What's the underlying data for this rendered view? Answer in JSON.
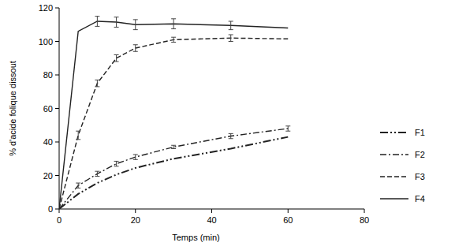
{
  "chart_data": {
    "type": "line",
    "x_label": "Temps (min)",
    "y_label": "% d'acide folique dissout",
    "x": [
      0,
      5,
      10,
      15,
      20,
      30,
      45,
      60
    ],
    "xlim": [
      0,
      80
    ],
    "xticks": [
      0,
      20,
      40,
      60,
      80
    ],
    "ylim": [
      0,
      120
    ],
    "yticks": [
      0,
      20,
      40,
      60,
      80,
      100,
      120
    ],
    "grid": false,
    "legend": "right",
    "series": [
      {
        "name": "F1",
        "color": "#222222",
        "line_style": "dash-dot-dot",
        "values": [
          0,
          9,
          15.5,
          20.5,
          24.5,
          30,
          36,
          43
        ]
      },
      {
        "name": "F2",
        "color": "#222222",
        "line_style": "dash-dot",
        "values": [
          0,
          14,
          21,
          27,
          31,
          37,
          43.5,
          48
        ],
        "errors": [
          0,
          1.5,
          1.5,
          1.5,
          1.5,
          1,
          1.5,
          1.5
        ]
      },
      {
        "name": "F3",
        "color": "#222222",
        "line_style": "dashed",
        "values": [
          0,
          44,
          75,
          90,
          96,
          101,
          102,
          101.5
        ],
        "errors": [
          0,
          2.5,
          2,
          2,
          2,
          1.5,
          2,
          0
        ]
      },
      {
        "name": "F4",
        "color": "#222222",
        "line_style": "solid",
        "values": [
          0,
          106,
          112,
          111.5,
          110,
          110.5,
          109.5,
          108
        ],
        "errors": [
          0,
          0,
          3,
          3,
          3,
          3,
          2.5,
          0
        ]
      }
    ]
  }
}
